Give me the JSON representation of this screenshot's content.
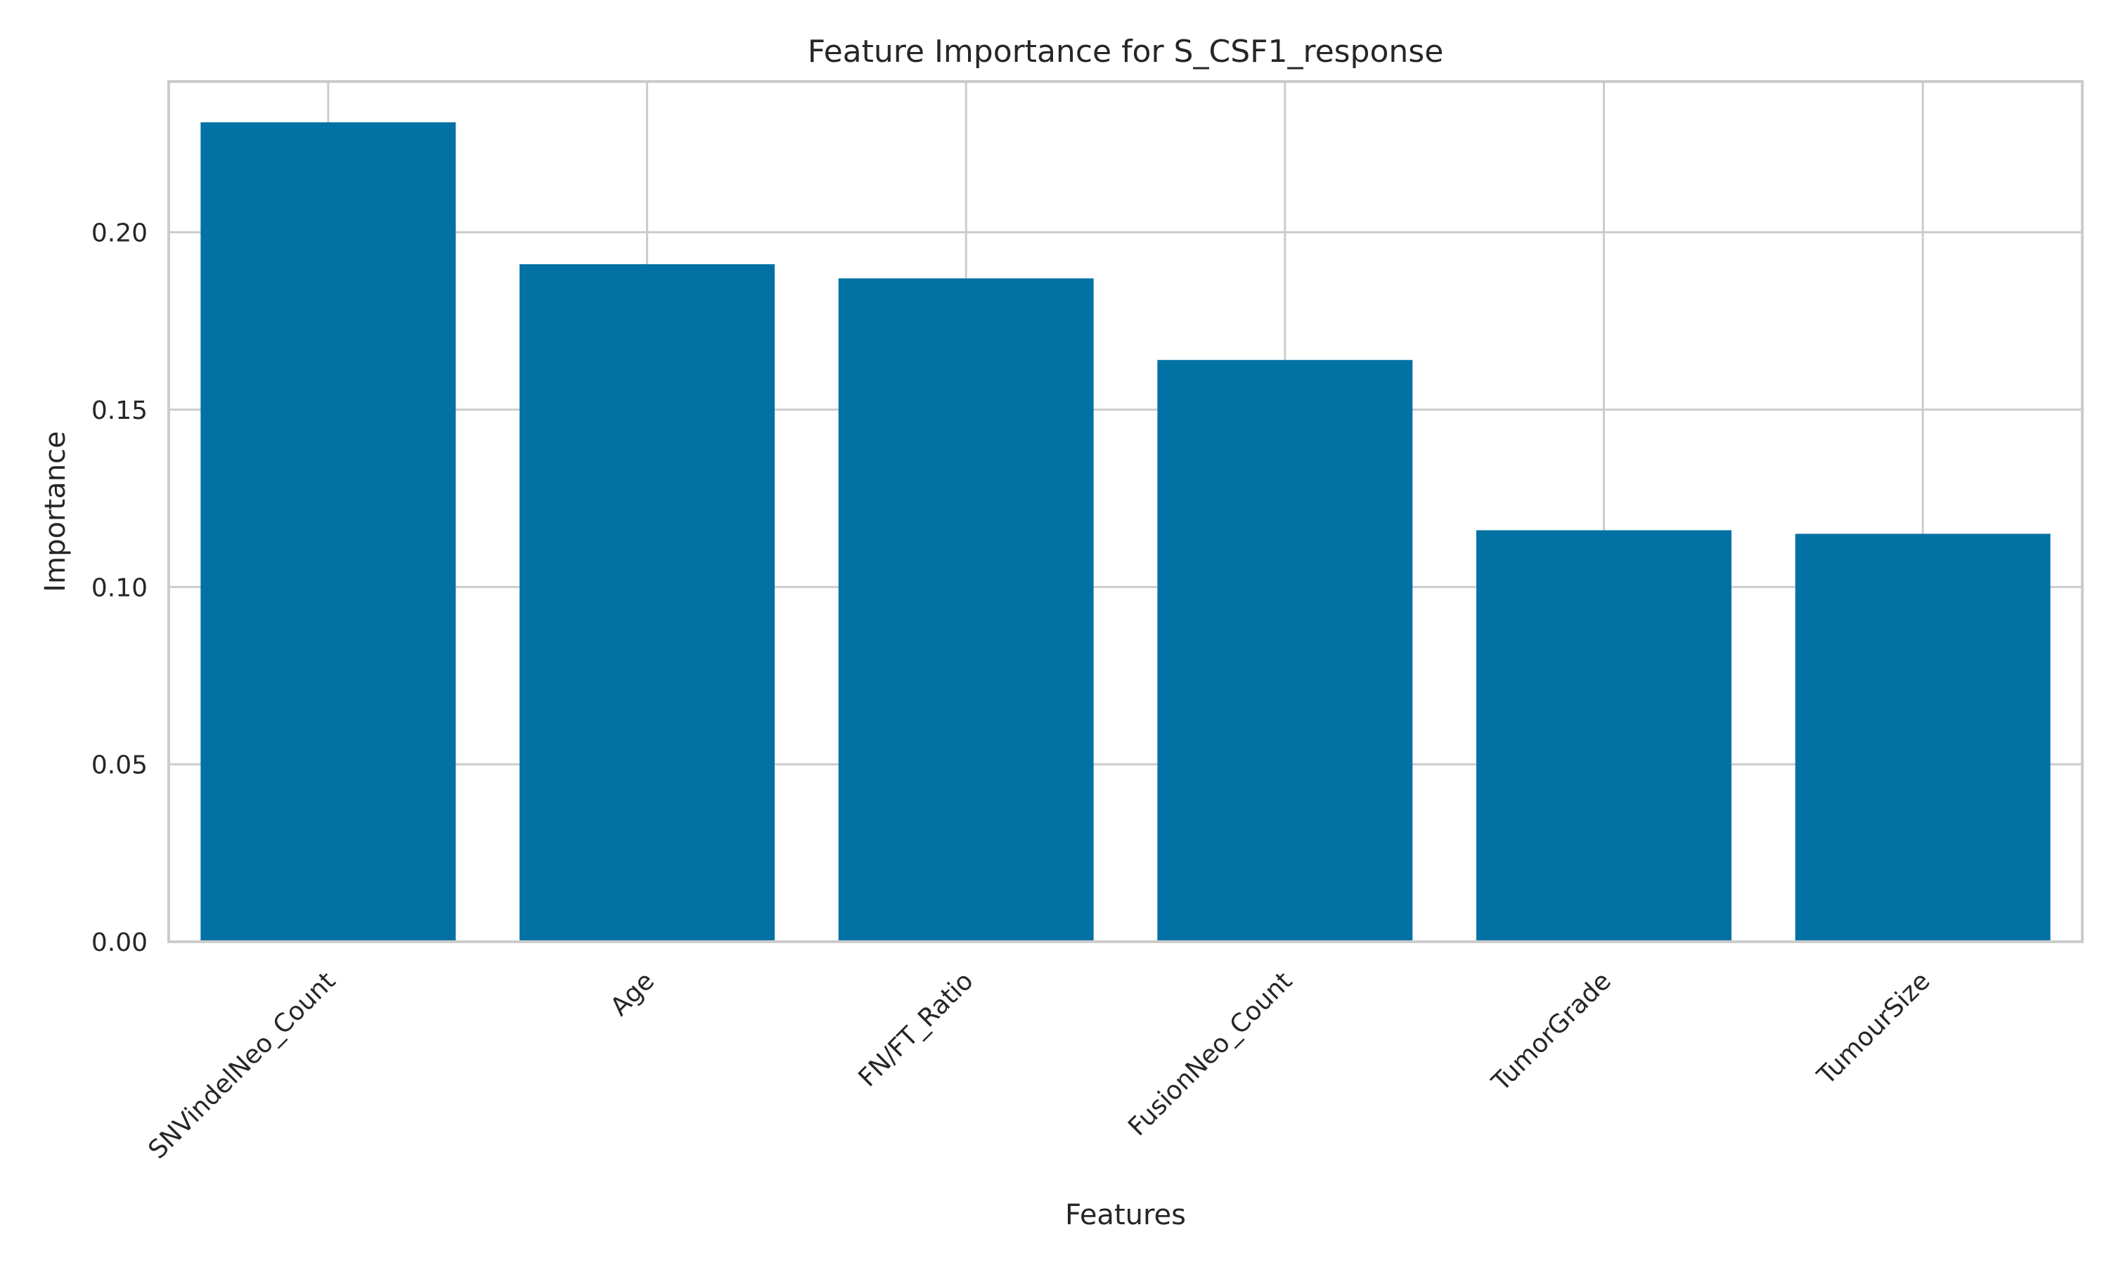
{
  "chart_data": {
    "type": "bar",
    "title": "Feature Importance for S_CSF1_response",
    "xlabel": "Features",
    "ylabel": "Importance",
    "categories": [
      "SNVindelNeo_Count",
      "Age",
      "FN/FT_Ratio",
      "FusionNeo_Count",
      "TumorGrade",
      "TumourSize"
    ],
    "values": [
      0.231,
      0.191,
      0.187,
      0.164,
      0.116,
      0.115
    ],
    "ylim": [
      0,
      0.2425
    ],
    "yticks": [
      0.0,
      0.05,
      0.1,
      0.15,
      0.2
    ],
    "ytick_labels": [
      "0.00",
      "0.05",
      "0.10",
      "0.15",
      "0.20"
    ],
    "grid": true,
    "legend": "none",
    "colors": {
      "bar": "#0271a4",
      "grid": "#cccccc",
      "axes_edge": "#cccccc",
      "text": "#262626"
    }
  }
}
